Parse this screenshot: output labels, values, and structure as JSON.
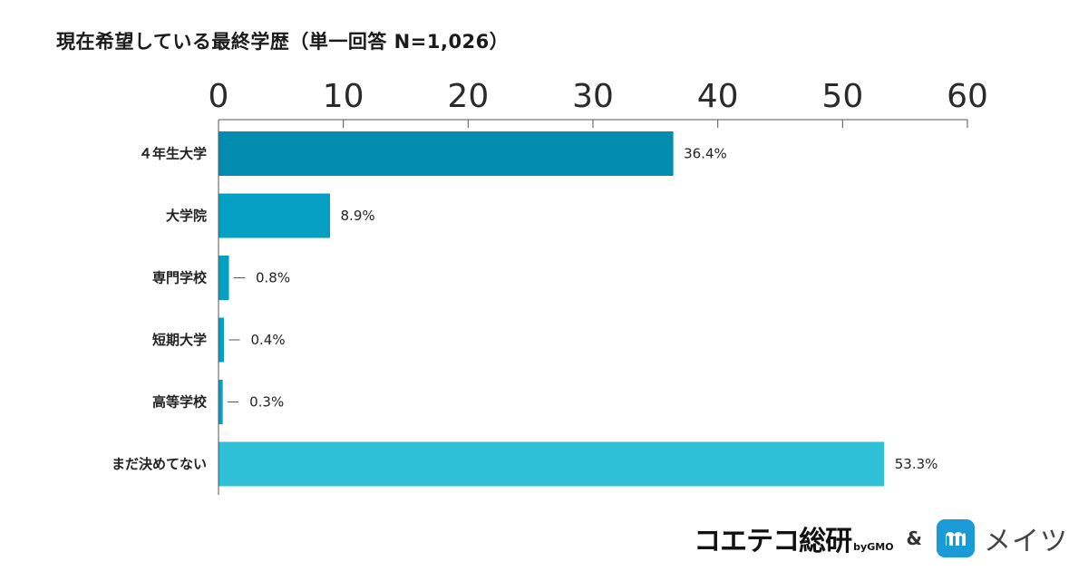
{
  "chart_data": {
    "type": "bar",
    "orientation": "horizontal",
    "title": "現在希望している最終学歴（単一回答 N=1,026）",
    "categories": [
      "４年生大学",
      "大学院",
      "専門学校",
      "短期大学",
      "高等学校",
      "まだ決めてない"
    ],
    "values": [
      36.4,
      8.9,
      0.8,
      0.4,
      0.3,
      53.3
    ],
    "value_labels": [
      "36.4%",
      "8.9%",
      "0.8%",
      "0.4%",
      "0.3%",
      "53.3%"
    ],
    "bar_colors": [
      "#028dae",
      "#049fc2",
      "#049fc2",
      "#049fc2",
      "#049fc2",
      "#2fbfd6"
    ],
    "xlim": [
      0,
      60
    ],
    "x_ticks": [
      0,
      10,
      20,
      30,
      40,
      50,
      60
    ],
    "x_tick_labels": [
      "0",
      "10",
      "20",
      "30",
      "40",
      "50",
      "60"
    ],
    "axis_position": "top",
    "grid": false,
    "legend": "none"
  },
  "footer": {
    "logo_kotetsu": "コエテコ総研",
    "logo_gmo": "byGMO",
    "logo_amp": "&",
    "logo_meitsu": "メイツ"
  },
  "colors": {
    "axis": "#555555",
    "meitsu_icon": "#1a9ad6"
  }
}
